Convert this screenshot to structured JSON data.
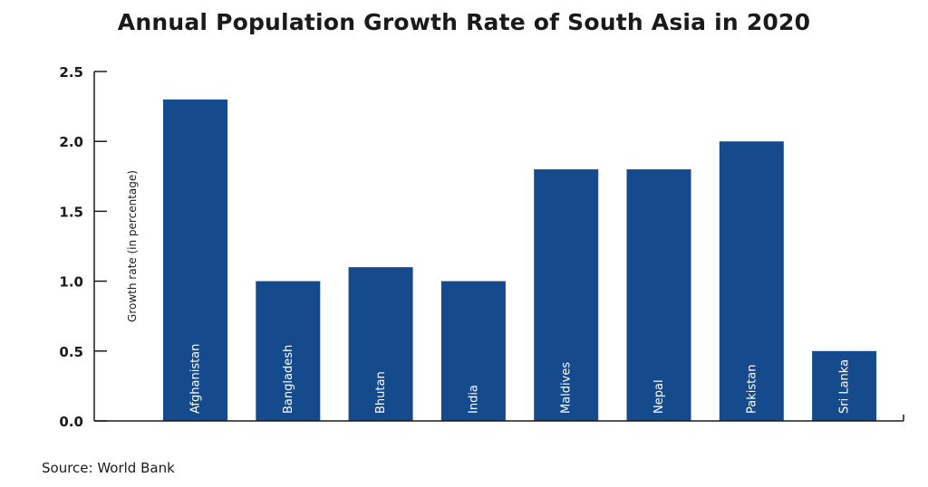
{
  "chart_data": {
    "type": "bar",
    "title": "Annual Population Growth Rate of South Asia in 2020",
    "ylabel": "Growth rate (in percentage)",
    "xlabel": "",
    "categories": [
      "Afghanistan",
      "Bangladesh",
      "Bhutan",
      "India",
      "Maldives",
      "Nepal",
      "Pakistan",
      "Sri Lanka"
    ],
    "values": [
      2.3,
      1.0,
      1.1,
      1.0,
      1.8,
      1.8,
      2.0,
      0.5
    ],
    "ylim": [
      0,
      2.5
    ],
    "yticks": [
      "0.0",
      "0.5",
      "1.0",
      "1.5",
      "2.0",
      "2.5"
    ],
    "grid": false,
    "bar_color": "#154a8c",
    "source": "Source: World Bank"
  }
}
